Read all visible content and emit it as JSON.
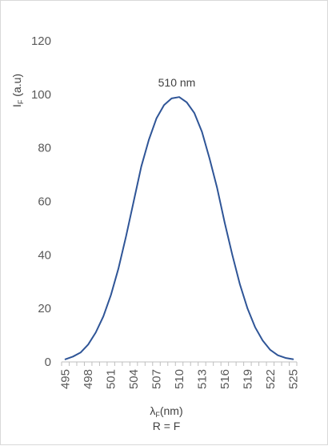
{
  "chart_data": {
    "type": "line",
    "title": "",
    "ylabel_main": "I",
    "ylabel_sub": "F",
    "ylabel_unit": " (a.u)",
    "xlabel_main": "λ",
    "xlabel_sub": "F",
    "xlabel_unit": "(nm)",
    "subtitle_bottom": "R = F",
    "ylim": [
      0,
      120
    ],
    "yticks": [
      "0",
      "20",
      "40",
      "60",
      "80",
      "100",
      "120"
    ],
    "xlim": [
      494.5,
      525.5
    ],
    "xticks": [
      "495",
      "498",
      "501",
      "504",
      "507",
      "510",
      "513",
      "516",
      "519",
      "522",
      "525"
    ],
    "grid": false,
    "legend": "none",
    "line_color": "#2f5597",
    "annotation": {
      "text": "510 nm",
      "x": 510,
      "y": 99
    },
    "series": [
      {
        "x": [
          495,
          496,
          497,
          498,
          499,
          500,
          501,
          502,
          503,
          504,
          505,
          506,
          507,
          508,
          509,
          510,
          511,
          512,
          513,
          514,
          515,
          516,
          517,
          518,
          519,
          520,
          521,
          522,
          523,
          524,
          525
        ],
        "values": [
          1,
          2,
          3.5,
          6.5,
          11,
          17,
          25,
          35,
          47,
          60,
          73,
          83,
          91,
          96,
          98.5,
          99,
          97,
          93,
          86,
          76,
          65,
          52,
          40,
          29,
          20,
          13,
          8,
          4.5,
          2.5,
          1.5,
          1
        ]
      }
    ]
  }
}
